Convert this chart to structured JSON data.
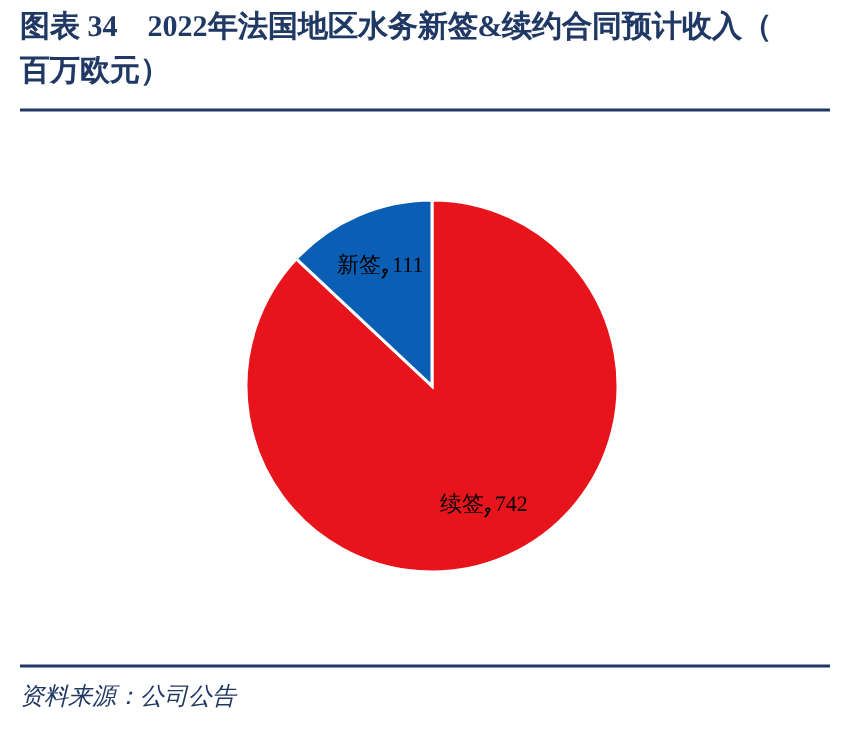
{
  "chart_data": {
    "type": "pie",
    "title": "图表 34　2022年法国地区水务新签&续约合同预计收入（百万欧元）",
    "categories": [
      "续签",
      "新签"
    ],
    "values": [
      742,
      111
    ],
    "colors": [
      "#e8141c",
      "#0a5fb4"
    ],
    "data_labels": true,
    "legend": false,
    "annotations": [
      "资料来源：公司公告"
    ]
  }
}
